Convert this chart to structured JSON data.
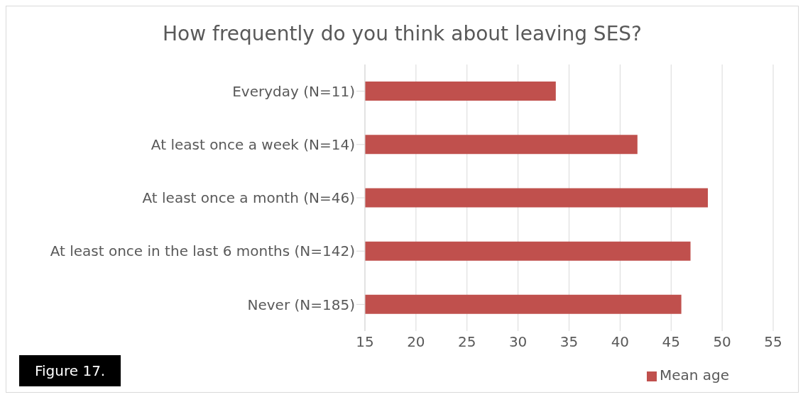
{
  "chart_data": {
    "type": "bar",
    "orientation": "horizontal",
    "title": "How frequently do you think about leaving SES?",
    "categories": [
      "Everyday (N=11)",
      "At least once a week (N=14)",
      "At least once a month (N=46)",
      "At least once in the last 6 months (N=142)",
      "Never (N=185)"
    ],
    "series": [
      {
        "name": "Mean age",
        "color": "#c0504d",
        "values": [
          33.7,
          41.7,
          48.6,
          46.9,
          46.0
        ]
      }
    ],
    "xlim": [
      15,
      55
    ],
    "xticks": [
      15,
      20,
      25,
      30,
      35,
      40,
      45,
      50,
      55
    ],
    "grid": "x",
    "legend": "bottom",
    "annotations": [
      "Figure 17."
    ]
  }
}
